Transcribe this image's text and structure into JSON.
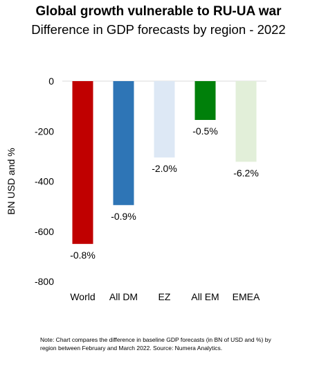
{
  "chart_data": {
    "type": "bar",
    "title": "Global growth vulnerable to RU-UA war",
    "subtitle": "Difference in GDP forecasts by region - 2022",
    "ylabel": "BN USD and %",
    "ylim": [
      -800,
      0
    ],
    "yticks": [
      0,
      -200,
      -400,
      -600,
      -800
    ],
    "ytick_labels": [
      "0",
      "-200",
      "-400",
      "-600",
      "-800"
    ],
    "categories": [
      "World",
      "All DM",
      "EZ",
      "All EM",
      "EMEA"
    ],
    "values": [
      -650,
      -495,
      -305,
      -155,
      -322
    ],
    "data_labels": [
      "-0.8%",
      "-0.9%",
      "-2.0%",
      "-0.5%",
      "-6.2%"
    ],
    "colors": [
      "#c00000",
      "#2e75b6",
      "#dde8f5",
      "#00800a",
      "#e2efd9"
    ],
    "grid": false,
    "legend": "none"
  },
  "note": "Note: Chart compares the difference in baseline GDP forecasts (in BN of USD and %) by region between February and March 2022. Source: Numera Analytics."
}
